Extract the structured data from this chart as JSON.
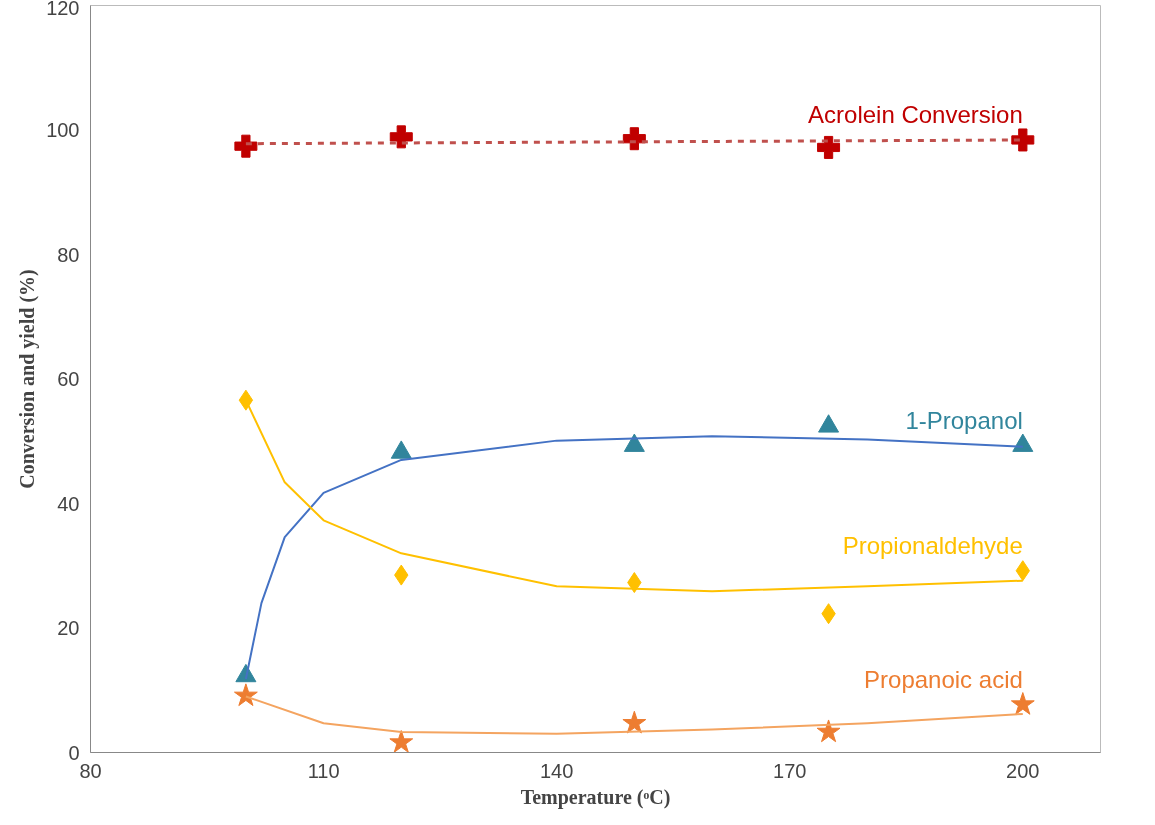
{
  "chart_data": {
    "type": "scatter",
    "xlabel": "Temperature (ᵒC)",
    "ylabel": "Conversion and yield (%)",
    "xlim": [
      80,
      210
    ],
    "ylim": [
      0,
      120
    ],
    "xticks": [
      80,
      110,
      140,
      170,
      200
    ],
    "yticks": [
      0,
      20,
      40,
      60,
      80,
      100,
      120
    ],
    "grid": false,
    "legend": false,
    "series": [
      {
        "name": "Acrolein Conversion",
        "color": "#c00000",
        "marker": "cross",
        "x": [
          100,
          120,
          150,
          175,
          200
        ],
        "values": [
          97.4,
          98.9,
          98.6,
          97.2,
          98.4
        ]
      },
      {
        "type": "line",
        "color": "#c0504d",
        "line_style": "dashed",
        "marker": "none",
        "x": [
          100,
          200
        ],
        "values": [
          97.8,
          98.4
        ]
      },
      {
        "name": "1-Propanol",
        "color": "#31859c",
        "marker": "triangle",
        "x": [
          100,
          120,
          150,
          175,
          200
        ],
        "values": [
          12.3,
          48.2,
          49.3,
          52.4,
          49.3
        ]
      },
      {
        "type": "line",
        "color": "#4472c4",
        "line_style": "solid",
        "marker": "none",
        "x": [
          100,
          102,
          105,
          110,
          120,
          140,
          160,
          180,
          200
        ],
        "values": [
          11.8,
          24,
          34.6,
          41.7,
          47,
          50.1,
          50.8,
          50.3,
          49.1
        ]
      },
      {
        "name": "Propionaldehyde",
        "color": "#ffc000",
        "marker": "diamond",
        "x": [
          100,
          120,
          150,
          175,
          200
        ],
        "values": [
          56.6,
          28.5,
          27.3,
          22.3,
          29.2
        ]
      },
      {
        "type": "line",
        "color": "#ffc000",
        "line_style": "solid",
        "marker": "none",
        "x": [
          100,
          105,
          110,
          120,
          140,
          160,
          180,
          200
        ],
        "values": [
          56.6,
          43.4,
          37.3,
          32,
          26.7,
          25.9,
          26.7,
          27.6
        ]
      },
      {
        "name": "Propanoic acid",
        "color": "#ed7d31",
        "marker": "star",
        "x": [
          100,
          120,
          150,
          175,
          200
        ],
        "values": [
          9.1,
          1.6,
          4.7,
          3.3,
          7.7
        ]
      },
      {
        "type": "line",
        "color": "#f4a460",
        "line_style": "solid",
        "marker": "none",
        "x": [
          100,
          110,
          120,
          140,
          160,
          180,
          200
        ],
        "values": [
          9,
          4.7,
          3.3,
          3.0,
          3.7,
          4.7,
          6.2
        ]
      }
    ]
  }
}
